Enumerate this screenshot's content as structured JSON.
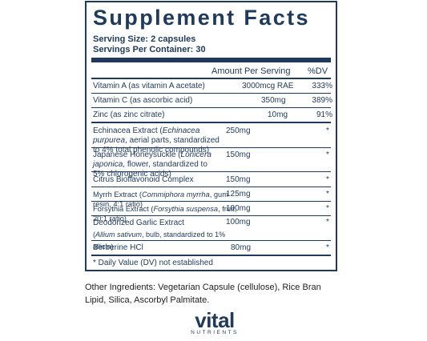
{
  "panel": {
    "title": "Supplement Facts",
    "serving_size": "Serving Size: 2 capsules",
    "servings_per_container": "Servings Per Container: 30",
    "col_amount": "Amount Per Serving",
    "col_dv": "%DV"
  },
  "rows": [
    {
      "name": "Vitamin A (as vitamin A acetate)",
      "amount": "3000mcg RAE",
      "dv": "333%"
    },
    {
      "name": "Vitamin C (as ascorbic acid)",
      "amount": "350mg",
      "dv": "389%"
    },
    {
      "name": "Zinc (as zinc citrate)",
      "amount": "10mg",
      "dv": "91%"
    },
    {
      "name_a": "Echinacea Extract (",
      "name_i": "Echinacea purpurea",
      "name_b": ", aerial parts, standardized to 4% total phenolic compounds)",
      "amount": "250mg",
      "dv": "*"
    },
    {
      "name_a": "Japanese Honeysuckle (",
      "name_i": "Lonicera japonica",
      "name_b": ", flower, standardized to 5% chlorogenic acids)",
      "amount": "150mg",
      "dv": "*"
    },
    {
      "name": "Citrus Bioflavonoid Complex",
      "amount": "150mg",
      "dv": "*"
    },
    {
      "name_a": "Myrrh Extract (",
      "name_i": "Commiphora myrrha",
      "name_b": ", gum resin, 4:1 ratio)",
      "amount": "125mg",
      "dv": "*"
    },
    {
      "name_a": "Forsythia Extract (",
      "name_i": "Forsythia suspensa",
      "name_b": ", fruit, 20:1 ratio)",
      "amount": "100mg",
      "dv": "*"
    },
    {
      "name_a": "Deodorized Garlic Extract",
      "name_i": "Allium sativum",
      "name_b": ", bulb, standardized to 1% allicin)",
      "amount": "100mg",
      "dv": "*"
    },
    {
      "name": "Berberine HCl",
      "amount": "80mg",
      "dv": "*"
    }
  ],
  "footnote": "* Daily Value (DV) not established",
  "other_ingredients": "Other Ingredients: Vegetarian Capsule (cellulose), Rice Bran Lipid, Silica, Ascorbyl Palmitate.",
  "logo": {
    "brand": "vital",
    "sub": "NUTRIENTS"
  },
  "colors": {
    "ink": "#1f3a5a"
  }
}
